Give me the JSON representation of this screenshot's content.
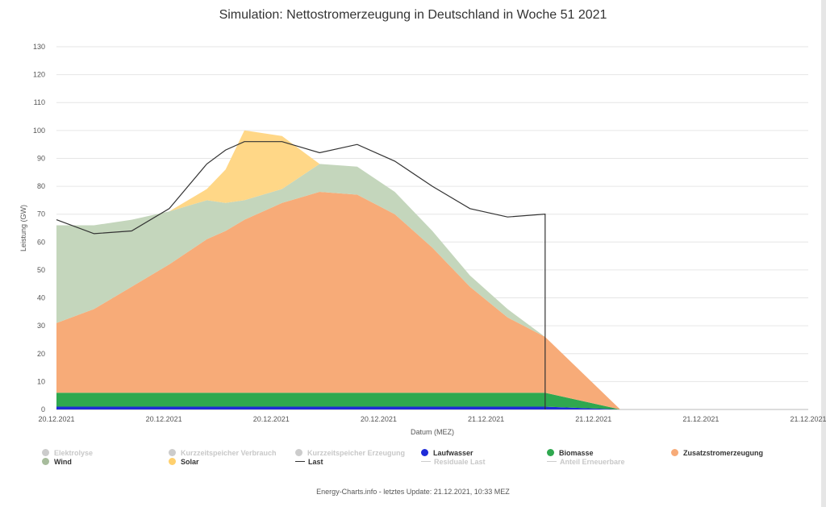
{
  "chart_data": {
    "type": "area",
    "title": "Simulation: Nettostromerzeugung in Deutschland in Woche 51 2021",
    "xlabel": "Datum (MEZ)",
    "ylabel": "Leistung (GW)",
    "ylim": [
      0,
      130
    ],
    "yticks": [
      "0",
      "10",
      "20",
      "30",
      "40",
      "50",
      "60",
      "70",
      "80",
      "90",
      "100",
      "110",
      "120",
      "130"
    ],
    "xticks": [
      "20.12.2021",
      "20.12.2021",
      "20.12.2021",
      "20.12.2021",
      "21.12.2021",
      "21.12.2021",
      "21.12.2021",
      "21.12.2021"
    ],
    "grid": true,
    "legend_position": "bottom",
    "x_hours": [
      0,
      2,
      4,
      6,
      8,
      9,
      10,
      12,
      14,
      16,
      18,
      20,
      22,
      24,
      26,
      30,
      31,
      32,
      33,
      36,
      38,
      40
    ],
    "series": [
      {
        "name": "Laufwasser",
        "color": "#1f2bd8",
        "values": [
          1,
          1,
          1,
          1,
          1,
          1,
          1,
          1,
          1,
          1,
          1,
          1,
          1,
          1,
          1,
          0,
          0,
          0,
          0,
          0,
          0,
          0
        ]
      },
      {
        "name": "Biomasse",
        "color": "#2fa84f",
        "values": [
          5,
          5,
          5,
          5,
          5,
          5,
          5,
          5,
          5,
          5,
          5,
          5,
          5,
          5,
          5,
          0,
          0,
          0,
          0,
          0,
          0,
          0
        ]
      },
      {
        "name": "Zusatzstromerzeugung",
        "color": "#f7ab78",
        "values": [
          25,
          30,
          38,
          46,
          55,
          58,
          62,
          68,
          72,
          71,
          64,
          52,
          38,
          27,
          20,
          0,
          0,
          0,
          0,
          0,
          0,
          0
        ]
      },
      {
        "name": "Wind",
        "color": "#c4d6bc",
        "values": [
          35,
          30,
          24,
          19,
          14,
          10,
          7,
          5,
          10,
          10,
          8,
          6,
          4,
          3,
          0,
          0,
          0,
          0,
          0,
          0,
          0,
          0
        ]
      },
      {
        "name": "Solar",
        "color": "#ffd787",
        "values": [
          0,
          0,
          0,
          0,
          4,
          12,
          25,
          19,
          0,
          0,
          0,
          0,
          0,
          0,
          0,
          0,
          0,
          0,
          0,
          0,
          0,
          0
        ]
      },
      {
        "name": "Last",
        "color": "#333333",
        "values": [
          68,
          63,
          64,
          72,
          88,
          93,
          96,
          96,
          92,
          95,
          89,
          80,
          72,
          69,
          70,
          null,
          null,
          null,
          null,
          null,
          null,
          null
        ]
      }
    ],
    "legend": [
      {
        "name": "Elektrolyse",
        "symbol": "dot",
        "color": "#cccccc",
        "active": false
      },
      {
        "name": "Kurzzeitspeicher Verbrauch",
        "symbol": "dot",
        "color": "#cccccc",
        "active": false
      },
      {
        "name": "Kurzzeitspeicher Erzeugung",
        "symbol": "dot",
        "color": "#cccccc",
        "active": false
      },
      {
        "name": "Laufwasser",
        "symbol": "dot",
        "color": "#1f2bd8",
        "active": true
      },
      {
        "name": "Biomasse",
        "symbol": "dot",
        "color": "#2fa84f",
        "active": true
      },
      {
        "name": "Zusatzstromerzeugung",
        "symbol": "dot",
        "color": "#f7ab78",
        "active": true
      },
      {
        "name": "Wind",
        "symbol": "dot",
        "color": "#a7bc9c",
        "active": true
      },
      {
        "name": "Solar",
        "symbol": "dot",
        "color": "#ffd06e",
        "active": true
      },
      {
        "name": "Last",
        "symbol": "line",
        "color": "#333333",
        "active": true
      },
      {
        "name": "Residuale Last",
        "symbol": "line",
        "color": "#cccccc",
        "active": false
      },
      {
        "name": "Anteil Erneuerbare",
        "symbol": "line",
        "color": "#cccccc",
        "active": false
      }
    ]
  },
  "footer": "Energy-Charts.info - letztes Update: 21.12.2021, 10:33 MEZ"
}
